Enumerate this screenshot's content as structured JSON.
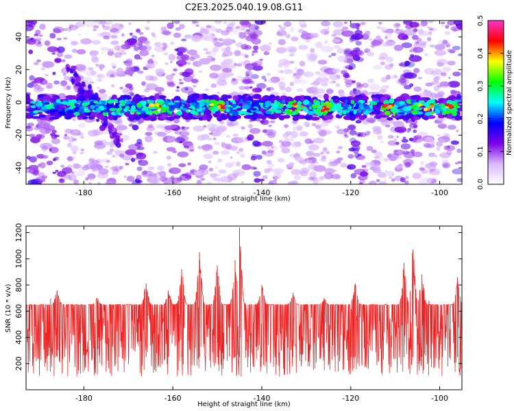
{
  "chart_data": [
    {
      "type": "heatmap",
      "title": "C2E3.2025.040.19.08.G11",
      "xlabel": "Height of straight line (km)",
      "ylabel": "Frequency (Hz)",
      "xlim": [
        -193,
        -95
      ],
      "ylim": [
        -50,
        50
      ],
      "xticks": [
        -180,
        -160,
        -140,
        -120,
        -100
      ],
      "yticks": [
        -40,
        -20,
        0,
        20,
        40
      ],
      "colorbar": {
        "label": "Normalized spectral amplitude",
        "range": [
          0.0,
          0.5
        ],
        "ticks": [
          0.0,
          0.1,
          0.2,
          0.3,
          0.4,
          0.5
        ],
        "colormap": [
          "#ffffff",
          "#d9b8ff",
          "#7b00e6",
          "#0000ff",
          "#00ffff",
          "#00ff00",
          "#ffff00",
          "#ff0000",
          "#ff33cc"
        ]
      },
      "features": {
        "main_band_center_hz": -3,
        "main_band_halfwidth_hz": 5,
        "peak_amplitude_positions_km": [
          -164,
          -150,
          -132,
          -126,
          -112,
          -103,
          -97
        ],
        "diagonal_feature_from": [
          -183,
          20
        ],
        "diagonal_feature_to": [
          -172,
          -25
        ],
        "dense_background_columns_km": [
          -192,
          -186,
          -168,
          -158,
          -141,
          -119,
          -107,
          -96
        ]
      }
    },
    {
      "type": "line",
      "xlabel": "Height of straight line (km)",
      "ylabel": "SNR (10 * v/v)",
      "xlim": [
        -193,
        -95
      ],
      "ylim": [
        0,
        1250
      ],
      "xticks": [
        -180,
        -160,
        -140,
        -120,
        -100
      ],
      "yticks": [
        200,
        400,
        600,
        800,
        1000,
        1200
      ],
      "color": "#ee2222",
      "baseline_mean": 300,
      "noise_range": [
        100,
        650
      ],
      "peaks": [
        {
          "x": -191,
          "y": 620
        },
        {
          "x": -186,
          "y": 760
        },
        {
          "x": -177,
          "y": 700
        },
        {
          "x": -166,
          "y": 810
        },
        {
          "x": -161,
          "y": 760
        },
        {
          "x": -158,
          "y": 920
        },
        {
          "x": -154,
          "y": 1050
        },
        {
          "x": -150,
          "y": 950
        },
        {
          "x": -146,
          "y": 990
        },
        {
          "x": -145,
          "y": 1240
        },
        {
          "x": -140,
          "y": 800
        },
        {
          "x": -133,
          "y": 740
        },
        {
          "x": -126,
          "y": 700
        },
        {
          "x": -119,
          "y": 810
        },
        {
          "x": -108,
          "y": 970
        },
        {
          "x": -106,
          "y": 1070
        },
        {
          "x": -104,
          "y": 880
        },
        {
          "x": -96,
          "y": 860
        }
      ]
    }
  ]
}
